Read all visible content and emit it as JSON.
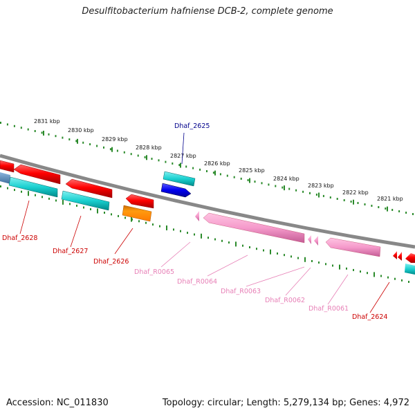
{
  "title": "Desulfitobacterium hafniense DCB-2, complete genome",
  "footer": {
    "accession": "Accession: NC_011830",
    "stats": "Topology: circular; Length: 5,279,134 bp; Genes: 4,972"
  },
  "kbp_labels": [
    "2831 kbp",
    "2830 kbp",
    "2829 kbp",
    "2828 kbp",
    "2827 kbp",
    "2826 kbp",
    "2825 kbp",
    "2824 kbp",
    "2823 kbp",
    "2822 kbp",
    "2821 kbp"
  ],
  "genes": [
    {
      "name": "Dhaf_2625",
      "color": "#0000cc"
    },
    {
      "name": "Dhaf_2628",
      "color": "#cc0000"
    },
    {
      "name": "Dhaf_2627",
      "color": "#cc0000"
    },
    {
      "name": "Dhaf_2626",
      "color": "#cc0000"
    },
    {
      "name": "Dhaf_R0065",
      "color": "#e77fb6"
    },
    {
      "name": "Dhaf_R0064",
      "color": "#e77fb6"
    },
    {
      "name": "Dhaf_R0063",
      "color": "#e77fb6"
    },
    {
      "name": "Dhaf_R0062",
      "color": "#e77fb6"
    },
    {
      "name": "Dhaf_R0061",
      "color": "#e77fb6"
    },
    {
      "name": "Dhaf_2624",
      "color": "#cc0000"
    }
  ],
  "colors": {
    "backbone": "#888888",
    "tick": "#2a8a2a",
    "cds_forward": "#e00000",
    "cds_reverse": "#00c8c8",
    "trna": "#f5a0cc",
    "blue_gene": "#1010e0",
    "orange_gene": "#ff8c00",
    "steelblue_gene": "#5b8fbf"
  }
}
